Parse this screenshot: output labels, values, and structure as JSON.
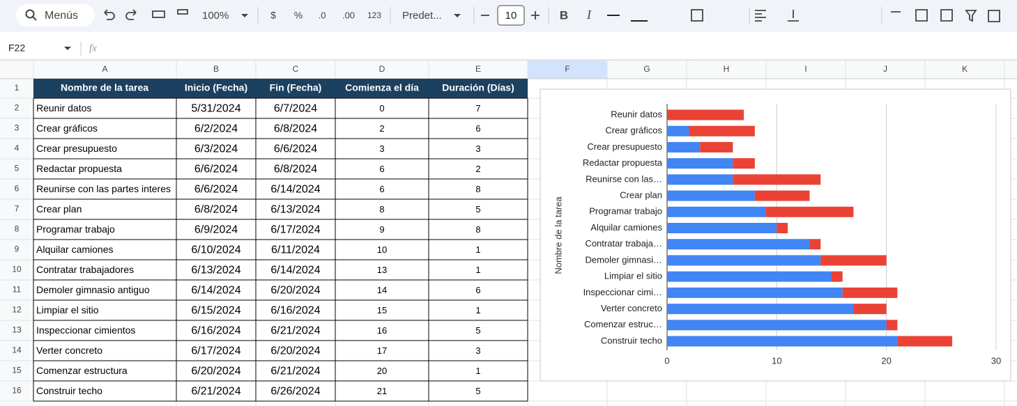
{
  "toolbar": {
    "search": "Menús",
    "zoom": "100%",
    "currency": "$",
    "percent": "%",
    "decrease_decimals": ".0",
    "increase_decimals": ".00",
    "number_formats": "123",
    "font": "Predet...",
    "font_size": "10",
    "bold": "B",
    "italic": "I"
  },
  "formula_bar": {
    "name_box": "F22",
    "fx": "fx"
  },
  "columns": [
    "A",
    "B",
    "C",
    "D",
    "E",
    "F",
    "G",
    "H",
    "I",
    "J",
    "K"
  ],
  "row_numbers": [
    1,
    2,
    3,
    4,
    5,
    6,
    7,
    8,
    9,
    10,
    11,
    12,
    13,
    14,
    15,
    16
  ],
  "table": {
    "header": [
      "Nombre de la tarea",
      "Inicio (Fecha)",
      "Fin (Fecha)",
      "Comienza el día",
      "Duración (Días)"
    ],
    "rows": [
      [
        "Reunir datos",
        "5/31/2024",
        "6/7/2024",
        0,
        7
      ],
      [
        "Crear gráficos",
        "6/2/2024",
        "6/8/2024",
        2,
        6
      ],
      [
        "Crear presupuesto",
        "6/3/2024",
        "6/6/2024",
        3,
        3
      ],
      [
        "Redactar propuesta",
        "6/6/2024",
        "6/8/2024",
        6,
        2
      ],
      [
        "Reunirse con las partes interes",
        "6/6/2024",
        "6/14/2024",
        6,
        8
      ],
      [
        "Crear plan",
        "6/8/2024",
        "6/13/2024",
        8,
        5
      ],
      [
        "Programar trabajo",
        "6/9/2024",
        "6/17/2024",
        9,
        8
      ],
      [
        "Alquilar camiones",
        "6/10/2024",
        "6/11/2024",
        10,
        1
      ],
      [
        "Contratar trabajadores",
        "6/13/2024",
        "6/14/2024",
        13,
        1
      ],
      [
        "Demoler gimnasio antiguo",
        "6/14/2024",
        "6/20/2024",
        14,
        6
      ],
      [
        "Limpiar el sitio",
        "6/15/2024",
        "6/16/2024",
        15,
        1
      ],
      [
        "Inspeccionar cimientos",
        "6/16/2024",
        "6/21/2024",
        16,
        5
      ],
      [
        "Verter concreto",
        "6/17/2024",
        "6/20/2024",
        17,
        3
      ],
      [
        "Comenzar estructura",
        "6/20/2024",
        "6/21/2024",
        20,
        1
      ],
      [
        "Construir techo",
        "6/21/2024",
        "6/26/2024",
        21,
        5
      ]
    ]
  },
  "chart_data": {
    "type": "bar",
    "orientation": "horizontal",
    "stacked": true,
    "y_label": "Nombre de la tarea",
    "categories": [
      "Reunir datos",
      "Crear gráficos",
      "Crear presupuesto",
      "Redactar propuesta",
      "Reunirse con las…",
      "Crear plan",
      "Programar trabajo",
      "Alquilar camiones",
      "Contratar trabaja…",
      "Demoler gimnasi…",
      "Limpiar el sitio",
      "Inspeccionar cimi…",
      "Verter concreto",
      "Comenzar estruc…",
      "Construir techo"
    ],
    "series": [
      {
        "color": "#4285f4",
        "values": [
          0,
          2,
          3,
          6,
          6,
          8,
          9,
          10,
          13,
          14,
          15,
          16,
          17,
          20,
          21
        ]
      },
      {
        "color": "#ea4335",
        "values": [
          7,
          6,
          3,
          2,
          8,
          5,
          8,
          1,
          1,
          6,
          1,
          5,
          3,
          1,
          5
        ]
      }
    ],
    "xlim": [
      0,
      30
    ],
    "xticks": [
      0,
      10,
      20,
      30
    ],
    "grid": true
  }
}
